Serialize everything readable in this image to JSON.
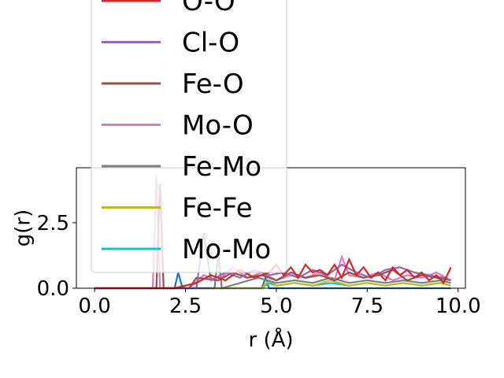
{
  "chart_data": {
    "type": "line",
    "xlabel": "r (Å)",
    "ylabel": "g(r)",
    "xlim": [
      -0.5,
      10.2
    ],
    "ylim": [
      0,
      4.6
    ],
    "xticks": [
      0.0,
      2.5,
      5.0,
      7.5,
      10.0
    ],
    "xtick_labels": [
      "0.0",
      "2.5",
      "5.0",
      "7.5",
      "10.0"
    ],
    "yticks": [
      0.0,
      2.5
    ],
    "ytick_labels": [
      "0.0",
      "2.5"
    ],
    "grid": false,
    "legend_position": "top-left, overflowing above plot",
    "series": [
      {
        "name": "O-O",
        "color": "#d62728",
        "x": [
          0,
          1.6,
          2.2,
          2.8,
          3.2,
          3.6,
          4.0,
          4.4,
          4.8,
          5.0,
          5.2,
          5.4,
          5.6,
          5.8,
          6.0,
          6.2,
          6.4,
          6.6,
          6.8,
          7.0,
          7.2,
          7.4,
          7.6,
          7.8,
          8.0,
          8.2,
          8.4,
          8.6,
          8.8,
          9.0,
          9.2,
          9.4,
          9.6,
          9.8
        ],
        "y": [
          0,
          0,
          0,
          0.2,
          0.5,
          0.3,
          0.7,
          0.4,
          0.6,
          0.9,
          0.5,
          0.8,
          0.4,
          0.9,
          0.6,
          0.7,
          0.5,
          0.9,
          0.4,
          1.1,
          0.5,
          0.8,
          0.4,
          0.6,
          0.3,
          0.8,
          0.5,
          0.7,
          0.4,
          0.6,
          0.3,
          0.5,
          0.2,
          0.8
        ]
      },
      {
        "name": "Cl-O",
        "color": "#9467bd",
        "x": [
          0,
          2.8,
          3.0,
          3.2,
          3.6,
          4.0,
          4.4,
          4.8,
          5.2,
          5.6,
          6.0,
          6.4,
          6.8,
          7.2,
          7.6,
          8.0,
          8.4,
          8.8,
          9.2,
          9.6,
          9.8
        ],
        "y": [
          0,
          0,
          2.1,
          0.3,
          0.6,
          0.4,
          0.7,
          0.5,
          0.6,
          0.4,
          0.7,
          0.5,
          0.9,
          0.6,
          0.4,
          0.7,
          0.8,
          0.6,
          0.5,
          0.4,
          0.3
        ]
      },
      {
        "name": "Fe-O",
        "color": "#8c564b",
        "x": [
          0,
          1.7,
          1.8,
          1.9,
          2.6,
          2.8,
          3.4,
          3.8,
          4.2,
          4.6,
          5.0,
          5.4,
          5.8,
          6.2,
          6.6,
          7.0,
          7.4,
          7.8,
          8.2,
          8.6,
          9.0,
          9.4,
          9.8
        ],
        "y": [
          0,
          0,
          4.0,
          0,
          0,
          0.4,
          0.3,
          0.6,
          0.4,
          0.5,
          0.3,
          0.6,
          0.4,
          0.5,
          0.3,
          0.6,
          0.4,
          0.5,
          0.7,
          0.3,
          0.5,
          0.4,
          0.3
        ]
      },
      {
        "name": "Mo-O",
        "color": "#e377c2",
        "x": [
          0,
          1.6,
          1.7,
          1.8,
          2.6,
          3.0,
          3.4,
          3.8,
          4.2,
          4.6,
          5.0,
          5.4,
          5.8,
          6.2,
          6.6,
          6.8,
          7.0,
          7.4,
          7.8,
          8.2,
          8.6,
          9.0,
          9.4,
          9.8
        ],
        "y": [
          0,
          0,
          4.3,
          0,
          0,
          0.5,
          0.3,
          0.8,
          0.4,
          0.6,
          0.3,
          0.5,
          0.4,
          0.6,
          0.3,
          1.2,
          0.5,
          0.4,
          0.6,
          0.3,
          0.5,
          0.4,
          0.6,
          0.3
        ]
      },
      {
        "name": "Fe-Mo",
        "color": "#7f7f7f",
        "x": [
          0,
          3.3,
          3.4,
          3.5,
          4.0,
          4.5,
          5.0,
          5.5,
          6.0,
          6.5,
          7.0,
          7.5,
          8.0,
          8.5,
          9.0,
          9.5,
          9.8
        ],
        "y": [
          0,
          0,
          1.3,
          0,
          0.2,
          0.4,
          0.2,
          0.3,
          0.2,
          0.4,
          0.2,
          0.3,
          0.2,
          0.3,
          0.2,
          0.3,
          0.2
        ]
      },
      {
        "name": "Fe-Fe",
        "color": "#bcbd22",
        "x": [
          0,
          4.6,
          4.8,
          5.0,
          5.5,
          6.0,
          6.5,
          7.0,
          7.5,
          8.0,
          8.5,
          9.0,
          9.5,
          9.8
        ],
        "y": [
          0,
          0,
          0.3,
          0.1,
          0.2,
          0.1,
          0.3,
          0.1,
          0.2,
          0.1,
          0.2,
          0.1,
          0.2,
          0.1
        ]
      },
      {
        "name": "Mo-Mo",
        "color": "#17becf",
        "x": [
          0,
          4.6,
          4.8,
          5.0,
          5.5,
          6.0,
          6.5,
          7.0,
          7.5,
          8.0,
          8.5,
          9.0,
          9.5,
          9.8
        ],
        "y": [
          0,
          0,
          0.2,
          0.1,
          0.2,
          0.1,
          0.2,
          0.1,
          0.2,
          0.1,
          0.2,
          0.1,
          0.2,
          0.1
        ]
      },
      {
        "name": "",
        "color": "#1f77b4",
        "x": [
          0,
          2.2,
          2.3,
          2.4,
          2.5,
          4.6,
          4.7,
          4.8,
          9.8
        ],
        "y": [
          0,
          0,
          0.6,
          0.1,
          0,
          0,
          0.4,
          0,
          0
        ]
      }
    ]
  }
}
